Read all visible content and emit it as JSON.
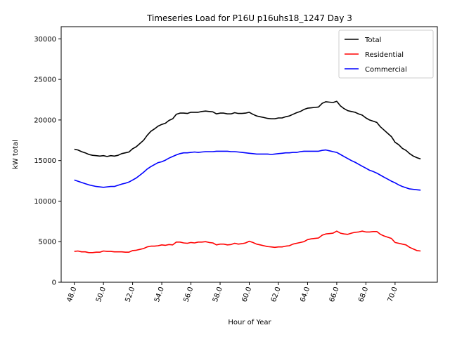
{
  "chart_data": {
    "type": "line",
    "title": "Timeseries Load for P16U p16uhs18_1247  Day 3",
    "xlabel": "Hour of Year",
    "ylabel": "kW total",
    "xlim": [
      47.1,
      72.9
    ],
    "ylim": [
      0,
      31500
    ],
    "xticks": [
      48,
      50,
      52,
      54,
      56,
      58,
      60,
      62,
      64,
      66,
      68,
      70
    ],
    "xtick_labels": [
      "48.0",
      "50.0",
      "52.0",
      "54.0",
      "56.0",
      "58.0",
      "60.0",
      "62.0",
      "64.0",
      "66.0",
      "68.0",
      "70.0"
    ],
    "yticks": [
      0,
      5000,
      10000,
      15000,
      20000,
      25000,
      30000
    ],
    "ytick_labels": [
      "0",
      "5000",
      "10000",
      "15000",
      "20000",
      "25000",
      "30000"
    ],
    "legend_position": "top-right",
    "series": [
      {
        "name": "Total",
        "color": "#000000",
        "x": [
          48.0,
          48.25,
          48.5,
          48.75,
          49.0,
          49.25,
          49.5,
          49.75,
          50.0,
          50.25,
          50.5,
          50.75,
          51.0,
          51.25,
          51.5,
          51.75,
          52.0,
          52.25,
          52.5,
          52.75,
          53.0,
          53.25,
          53.5,
          53.75,
          54.0,
          54.25,
          54.5,
          54.75,
          55.0,
          55.25,
          55.5,
          55.75,
          56.0,
          56.25,
          56.5,
          56.75,
          57.0,
          57.25,
          57.5,
          57.75,
          58.0,
          58.25,
          58.5,
          58.75,
          59.0,
          59.25,
          59.5,
          59.75,
          60.0,
          60.25,
          60.5,
          60.75,
          61.0,
          61.25,
          61.5,
          61.75,
          62.0,
          62.25,
          62.5,
          62.75,
          63.0,
          63.25,
          63.5,
          63.75,
          64.0,
          64.25,
          64.5,
          64.75,
          65.0,
          65.25,
          65.5,
          65.75,
          66.0,
          66.25,
          66.5,
          66.75,
          67.0,
          67.25,
          67.5,
          67.75,
          68.0,
          68.25,
          68.5,
          68.75,
          69.0,
          69.25,
          69.5,
          69.75,
          70.0,
          70.25,
          70.5,
          70.75,
          71.0,
          71.25,
          71.5,
          71.75
        ],
        "values": [
          16400,
          16300,
          16100,
          15950,
          15750,
          15650,
          15600,
          15550,
          15600,
          15500,
          15600,
          15550,
          15650,
          15850,
          15950,
          16050,
          16450,
          16700,
          17100,
          17500,
          18100,
          18600,
          18900,
          19250,
          19450,
          19600,
          19950,
          20150,
          20700,
          20850,
          20850,
          20800,
          20950,
          20950,
          20950,
          21050,
          21100,
          21050,
          21000,
          20750,
          20850,
          20850,
          20750,
          20750,
          20900,
          20800,
          20800,
          20850,
          20950,
          20700,
          20500,
          20400,
          20300,
          20200,
          20150,
          20150,
          20250,
          20250,
          20400,
          20500,
          20700,
          20900,
          21050,
          21300,
          21450,
          21500,
          21550,
          21600,
          22050,
          22250,
          22200,
          22150,
          22300,
          21750,
          21400,
          21150,
          21050,
          20950,
          20750,
          20600,
          20250,
          20000,
          19850,
          19700,
          19150,
          18750,
          18350,
          17950,
          17250,
          16950,
          16500,
          16250,
          15850,
          15550,
          15350,
          15200
        ]
      },
      {
        "name": "Residential",
        "color": "#ff0000",
        "x": [
          48.0,
          48.25,
          48.5,
          48.75,
          49.0,
          49.25,
          49.5,
          49.75,
          50.0,
          50.25,
          50.5,
          50.75,
          51.0,
          51.25,
          51.5,
          51.75,
          52.0,
          52.25,
          52.5,
          52.75,
          53.0,
          53.25,
          53.5,
          53.75,
          54.0,
          54.25,
          54.5,
          54.75,
          55.0,
          55.25,
          55.5,
          55.75,
          56.0,
          56.25,
          56.5,
          56.75,
          57.0,
          57.25,
          57.5,
          57.75,
          58.0,
          58.25,
          58.5,
          58.75,
          59.0,
          59.25,
          59.5,
          59.75,
          60.0,
          60.25,
          60.5,
          60.75,
          61.0,
          61.25,
          61.5,
          61.75,
          62.0,
          62.25,
          62.5,
          62.75,
          63.0,
          63.25,
          63.5,
          63.75,
          64.0,
          64.25,
          64.5,
          64.75,
          65.0,
          65.25,
          65.5,
          65.75,
          66.0,
          66.25,
          66.5,
          66.75,
          67.0,
          67.25,
          67.5,
          67.75,
          68.0,
          68.25,
          68.5,
          68.75,
          69.0,
          69.25,
          69.5,
          69.75,
          70.0,
          70.25,
          70.5,
          70.75,
          71.0,
          71.25,
          71.5,
          71.75
        ],
        "values": [
          3800,
          3850,
          3750,
          3750,
          3650,
          3650,
          3700,
          3700,
          3850,
          3800,
          3800,
          3750,
          3750,
          3750,
          3700,
          3700,
          3900,
          3950,
          4050,
          4150,
          4350,
          4450,
          4450,
          4500,
          4600,
          4550,
          4650,
          4600,
          4950,
          4950,
          4850,
          4800,
          4900,
          4850,
          4950,
          4950,
          5000,
          4900,
          4850,
          4600,
          4700,
          4700,
          4600,
          4650,
          4800,
          4700,
          4750,
          4850,
          5050,
          4900,
          4700,
          4600,
          4500,
          4400,
          4350,
          4300,
          4350,
          4350,
          4450,
          4500,
          4700,
          4800,
          4900,
          5000,
          5250,
          5350,
          5400,
          5450,
          5800,
          5950,
          6000,
          6050,
          6300,
          6050,
          5950,
          5900,
          6050,
          6150,
          6200,
          6300,
          6200,
          6200,
          6250,
          6250,
          5900,
          5700,
          5550,
          5400,
          4900,
          4800,
          4700,
          4600,
          4300,
          4100,
          3900,
          3850
        ]
      },
      {
        "name": "Commercial",
        "color": "#0000ff",
        "x": [
          48.0,
          48.25,
          48.5,
          48.75,
          49.0,
          49.25,
          49.5,
          49.75,
          50.0,
          50.25,
          50.5,
          50.75,
          51.0,
          51.25,
          51.5,
          51.75,
          52.0,
          52.25,
          52.5,
          52.75,
          53.0,
          53.25,
          53.5,
          53.75,
          54.0,
          54.25,
          54.5,
          54.75,
          55.0,
          55.25,
          55.5,
          55.75,
          56.0,
          56.25,
          56.5,
          56.75,
          57.0,
          57.25,
          57.5,
          57.75,
          58.0,
          58.25,
          58.5,
          58.75,
          59.0,
          59.25,
          59.5,
          59.75,
          60.0,
          60.25,
          60.5,
          60.75,
          61.0,
          61.25,
          61.5,
          61.75,
          62.0,
          62.25,
          62.5,
          62.75,
          63.0,
          63.25,
          63.5,
          63.75,
          64.0,
          64.25,
          64.5,
          64.75,
          65.0,
          65.25,
          65.5,
          65.75,
          66.0,
          66.25,
          66.5,
          66.75,
          67.0,
          67.25,
          67.5,
          67.75,
          68.0,
          68.25,
          68.5,
          68.75,
          69.0,
          69.25,
          69.5,
          69.75,
          70.0,
          70.25,
          70.5,
          70.75,
          71.0,
          71.25,
          71.5,
          71.75
        ],
        "values": [
          12600,
          12450,
          12300,
          12150,
          12000,
          11900,
          11800,
          11750,
          11700,
          11750,
          11800,
          11800,
          11950,
          12100,
          12200,
          12350,
          12600,
          12850,
          13200,
          13550,
          13950,
          14250,
          14500,
          14750,
          14850,
          15050,
          15300,
          15500,
          15700,
          15850,
          15950,
          15950,
          16000,
          16050,
          16000,
          16050,
          16100,
          16100,
          16100,
          16150,
          16150,
          16150,
          16150,
          16100,
          16100,
          16050,
          16000,
          15950,
          15900,
          15850,
          15800,
          15800,
          15800,
          15800,
          15750,
          15800,
          15850,
          15900,
          15950,
          15950,
          16000,
          16000,
          16100,
          16150,
          16150,
          16150,
          16150,
          16150,
          16250,
          16300,
          16200,
          16100,
          16000,
          15750,
          15500,
          15250,
          15000,
          14800,
          14550,
          14300,
          14050,
          13800,
          13650,
          13450,
          13200,
          12950,
          12700,
          12450,
          12250,
          12000,
          11800,
          11650,
          11500,
          11450,
          11400,
          11350
        ]
      }
    ]
  }
}
